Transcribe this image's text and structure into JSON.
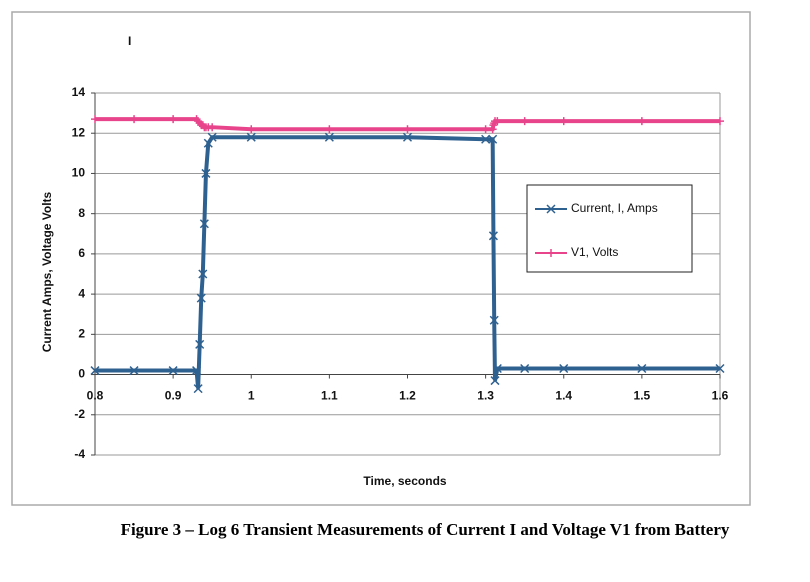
{
  "chart_data": {
    "type": "line",
    "title": "I",
    "caption": "Figure 3 – Log 6 Transient Measurements of Current I and Voltage V1 from Battery",
    "x_label": "Time, seconds",
    "y_label": "Current Amps, Voltage Volts",
    "x": [
      0.8,
      0.85,
      0.9,
      0.93,
      0.932,
      0.934,
      0.936,
      0.938,
      0.94,
      0.942,
      0.945,
      0.95,
      1.0,
      1.1,
      1.2,
      1.3,
      1.309,
      1.31,
      1.311,
      1.312,
      1.315,
      1.35,
      1.4,
      1.5,
      1.6
    ],
    "series": [
      {
        "name": "Current, I, Amps",
        "color": "#2f6190",
        "marker": "x",
        "values": [
          0.2,
          0.2,
          0.2,
          0.2,
          -0.7,
          1.5,
          3.8,
          5,
          7.5,
          10,
          11.5,
          11.8,
          11.8,
          11.8,
          11.8,
          11.7,
          11.7,
          6.9,
          2.7,
          -0.3,
          0.3,
          0.3,
          0.3,
          0.3,
          0.3
        ]
      },
      {
        "name": "V1, Volts",
        "color": "#e8448c",
        "marker": "+",
        "values": [
          12.7,
          12.7,
          12.7,
          12.7,
          12.6,
          12.5,
          12.4,
          12.4,
          12.3,
          12.3,
          12.3,
          12.3,
          12.2,
          12.2,
          12.2,
          12.2,
          12.2,
          12.4,
          12.5,
          12.6,
          12.6,
          12.6,
          12.6,
          12.6,
          12.6
        ]
      }
    ],
    "xlim": [
      0.8,
      1.6
    ],
    "xticks": [
      0.8,
      0.9,
      1,
      1.1,
      1.2,
      1.3,
      1.4,
      1.5,
      1.6
    ],
    "ylim": [
      -4,
      14
    ],
    "yticks": [
      -4,
      -2,
      0,
      2,
      4,
      6,
      8,
      10,
      12,
      14
    ],
    "grid": true,
    "legend": "right"
  }
}
